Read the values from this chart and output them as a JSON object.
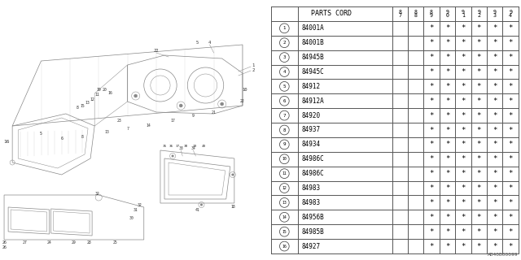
{
  "diagram_code": "AB40B00099",
  "table_header": "PARTS CORD",
  "year_cols": [
    "8\n7",
    "8\n8",
    "8\n9",
    "9\n0",
    "9\n1",
    "9\n2",
    "9\n3",
    "9\n4"
  ],
  "parts": [
    {
      "num": 1,
      "code": "84001A",
      "marks": [
        0,
        0,
        1,
        1,
        1,
        1,
        1,
        1
      ]
    },
    {
      "num": 2,
      "code": "84001B",
      "marks": [
        0,
        0,
        1,
        1,
        1,
        1,
        1,
        1
      ]
    },
    {
      "num": 3,
      "code": "84945B",
      "marks": [
        0,
        0,
        1,
        1,
        1,
        1,
        1,
        1
      ]
    },
    {
      "num": 4,
      "code": "84945C",
      "marks": [
        0,
        0,
        1,
        1,
        1,
        1,
        1,
        1
      ]
    },
    {
      "num": 5,
      "code": "84912",
      "marks": [
        0,
        0,
        1,
        1,
        1,
        1,
        1,
        1
      ]
    },
    {
      "num": 6,
      "code": "84912A",
      "marks": [
        0,
        0,
        1,
        1,
        1,
        1,
        1,
        1
      ]
    },
    {
      "num": 7,
      "code": "84920",
      "marks": [
        0,
        0,
        1,
        1,
        1,
        1,
        1,
        1
      ]
    },
    {
      "num": 8,
      "code": "84937",
      "marks": [
        0,
        0,
        1,
        1,
        1,
        1,
        1,
        1
      ]
    },
    {
      "num": 9,
      "code": "84934",
      "marks": [
        0,
        0,
        1,
        1,
        1,
        1,
        1,
        1
      ]
    },
    {
      "num": 10,
      "code": "84986C",
      "marks": [
        0,
        0,
        1,
        1,
        1,
        1,
        1,
        1
      ]
    },
    {
      "num": 11,
      "code": "84986C",
      "marks": [
        0,
        0,
        1,
        1,
        1,
        1,
        1,
        1
      ]
    },
    {
      "num": 12,
      "code": "84983",
      "marks": [
        0,
        0,
        1,
        1,
        1,
        1,
        1,
        1
      ]
    },
    {
      "num": 13,
      "code": "84983",
      "marks": [
        0,
        0,
        1,
        1,
        1,
        1,
        1,
        1
      ]
    },
    {
      "num": 14,
      "code": "84956B",
      "marks": [
        0,
        0,
        1,
        1,
        1,
        1,
        1,
        1
      ]
    },
    {
      "num": 15,
      "code": "84985B",
      "marks": [
        0,
        0,
        1,
        1,
        1,
        1,
        1,
        1
      ]
    },
    {
      "num": 16,
      "code": "84927",
      "marks": [
        0,
        0,
        1,
        1,
        1,
        1,
        1,
        1
      ]
    }
  ],
  "bg_color": "#ffffff",
  "line_color": "#888888",
  "text_color": "#333333",
  "table_line_color": "#555555",
  "mark_symbol": "*"
}
